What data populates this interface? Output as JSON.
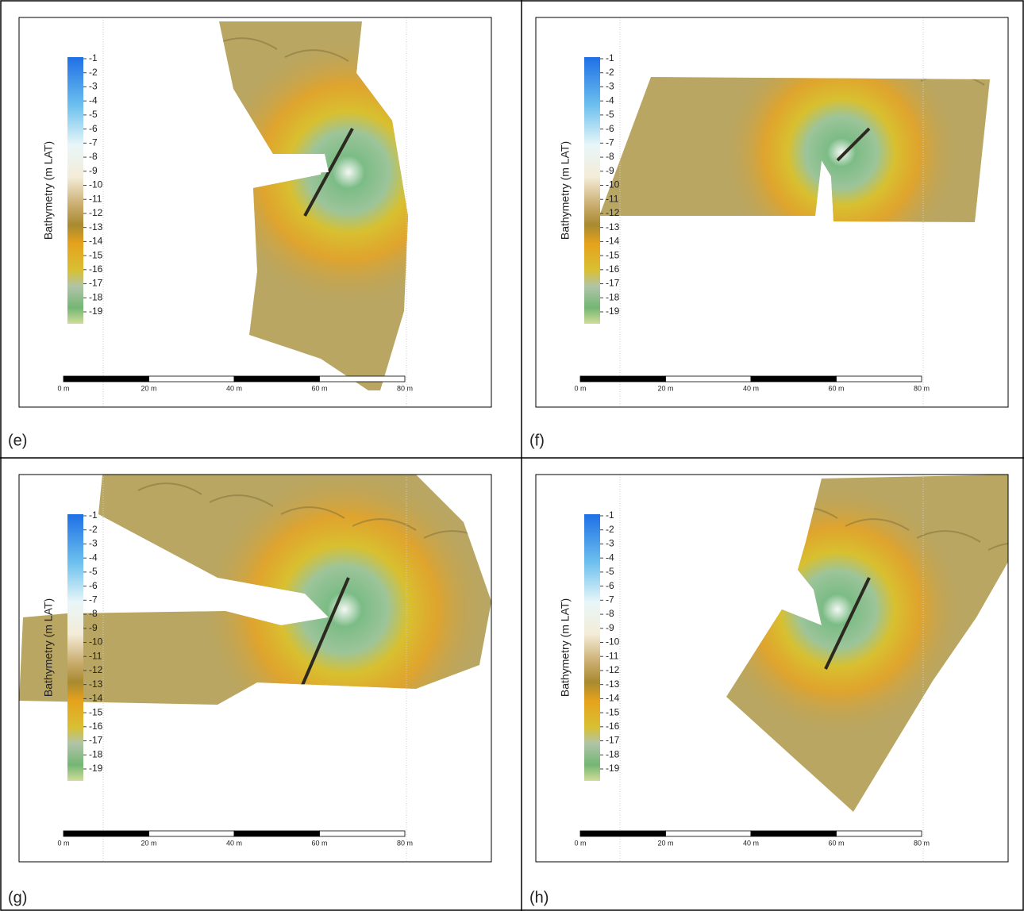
{
  "panels": [
    {
      "label": "(e)"
    },
    {
      "label": "(f)"
    },
    {
      "label": "(g)"
    },
    {
      "label": "(h)"
    }
  ],
  "colorbar": {
    "title": "Bathymetry (m LAT)",
    "ticks": [
      -1,
      -2,
      -3,
      -4,
      -5,
      -6,
      -7,
      -8,
      -9,
      -10,
      -11,
      -12,
      -13,
      -14,
      -15,
      -16,
      -17,
      -18,
      -19
    ]
  },
  "scale_bar": {
    "labels": [
      "0 m",
      "20 m",
      "40 m",
      "60 m",
      "80 m"
    ]
  }
}
